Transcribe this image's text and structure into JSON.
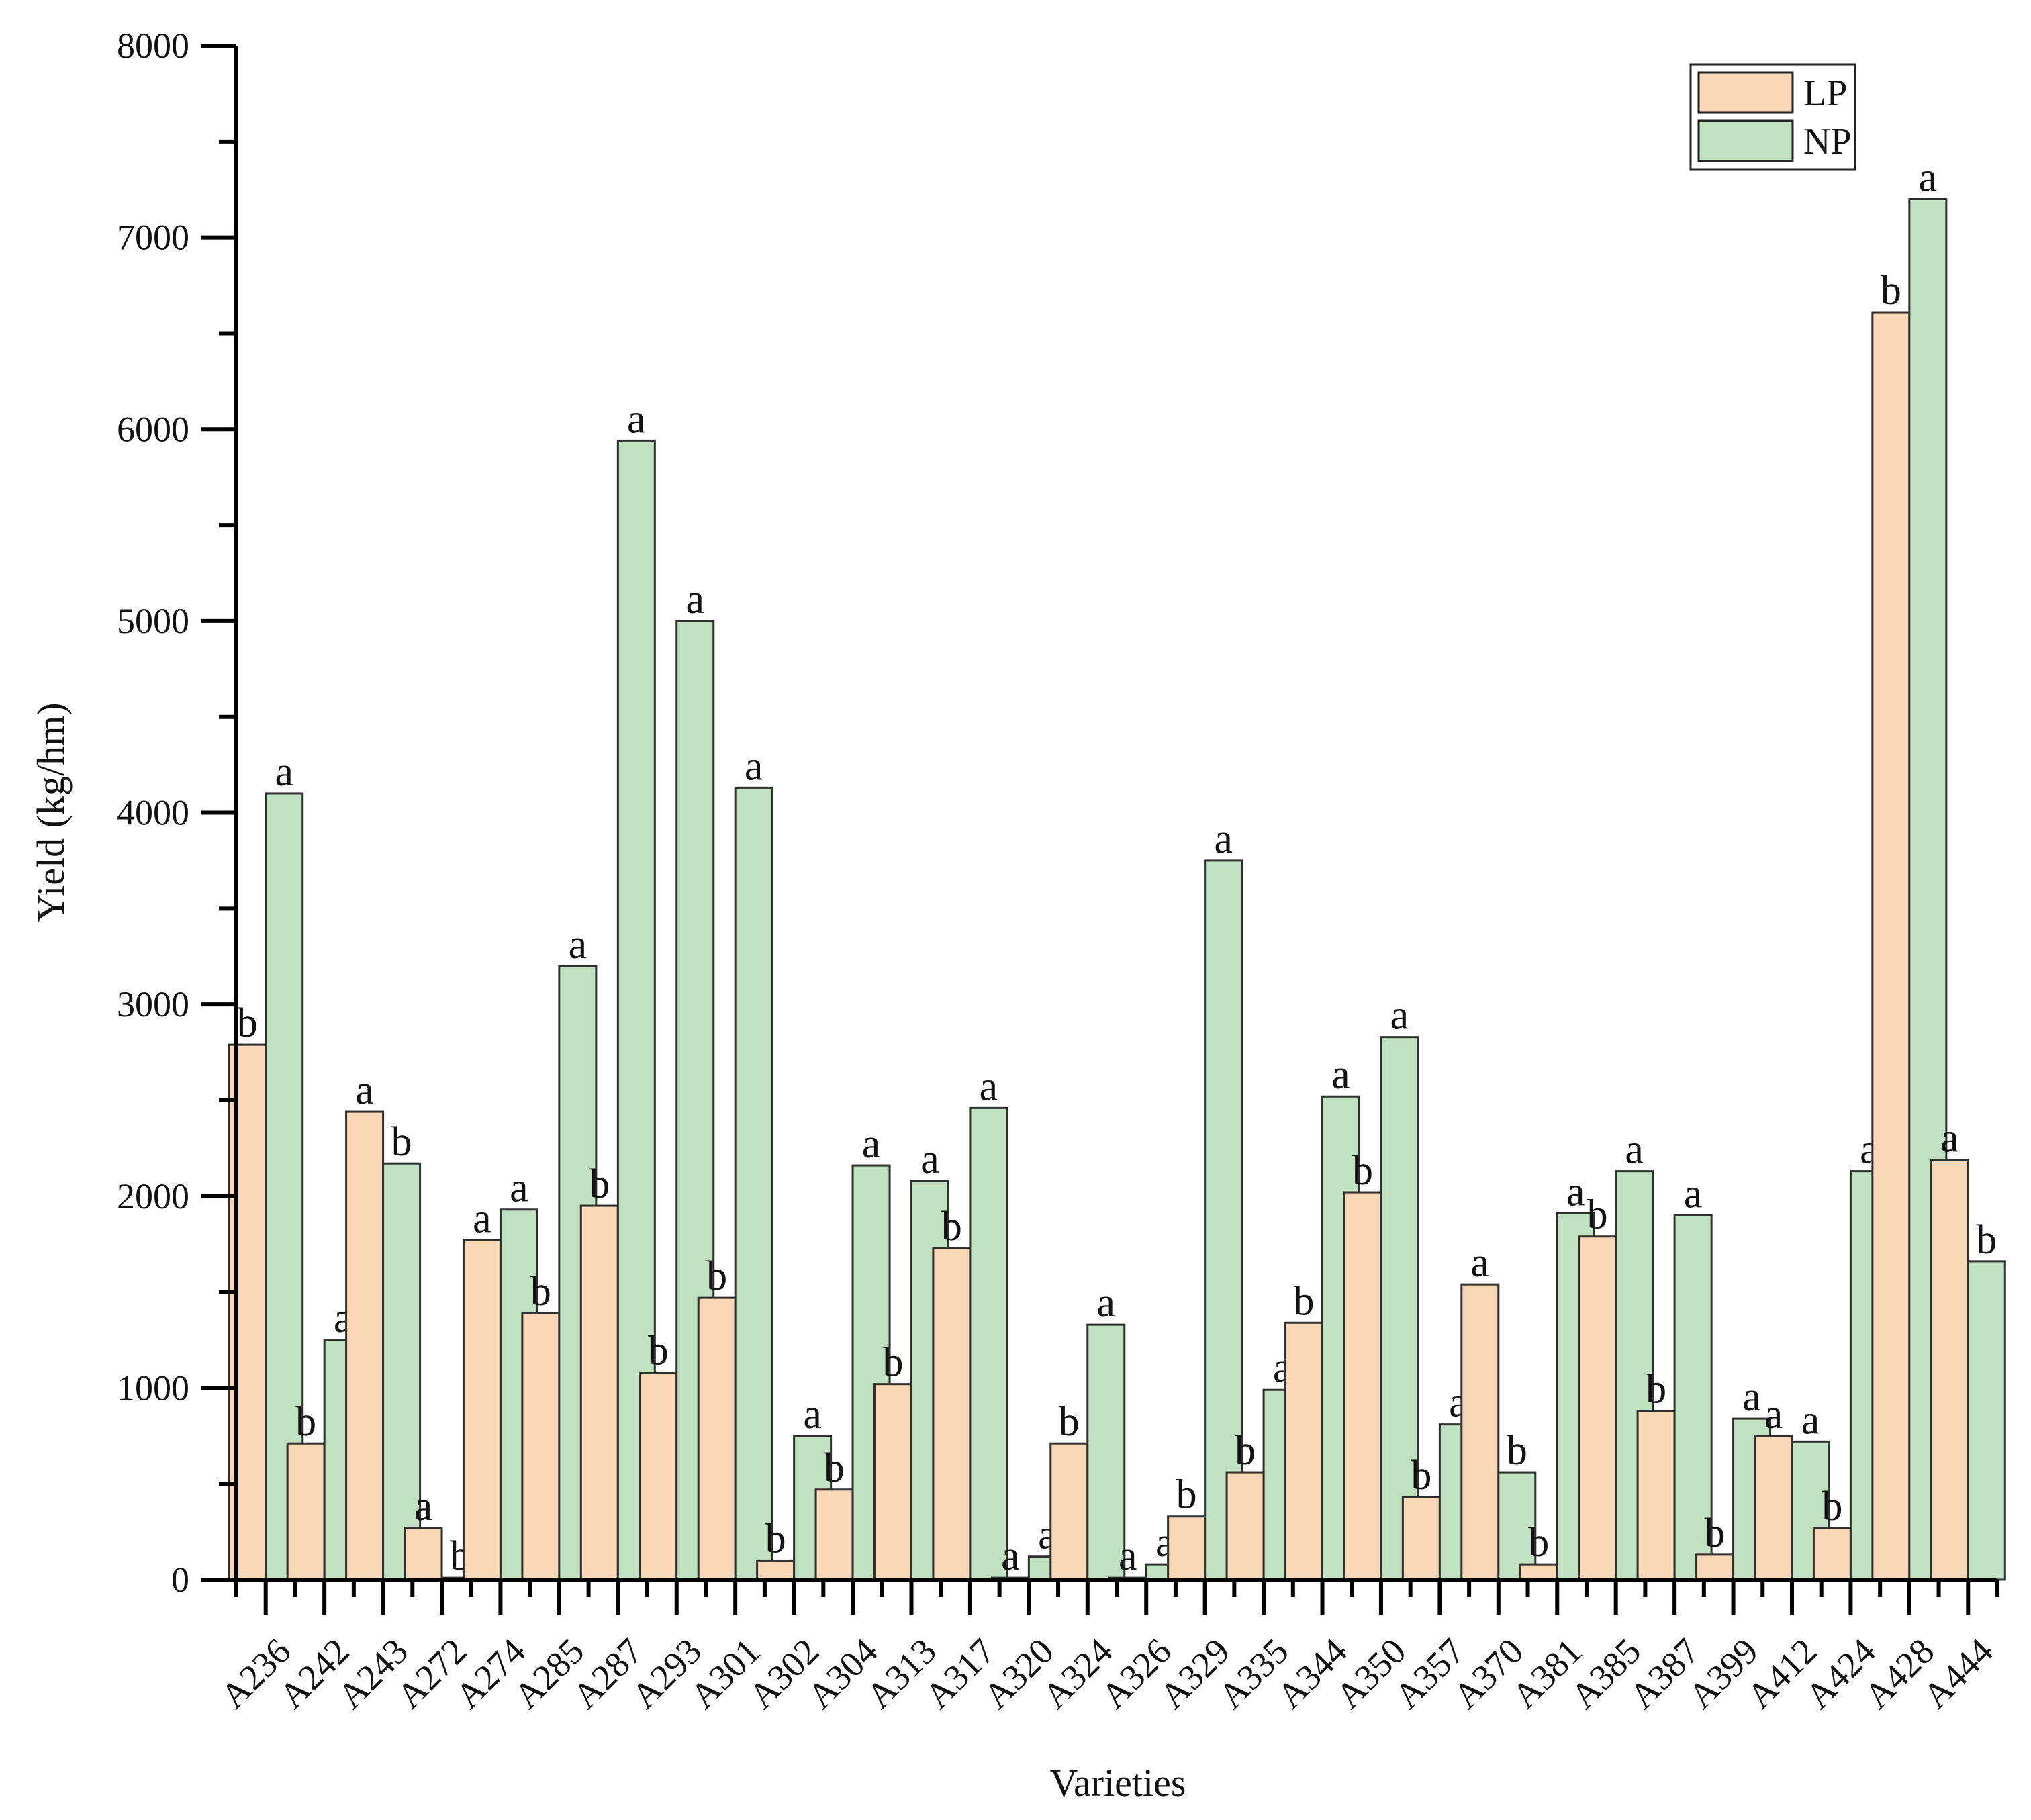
{
  "chart_data": {
    "type": "bar",
    "title": "",
    "xlabel": "Varieties",
    "ylabel": "Yield (kg/hm)",
    "ylim": [
      0,
      8000
    ],
    "yticks": [
      0,
      1000,
      2000,
      3000,
      4000,
      5000,
      6000,
      7000,
      8000
    ],
    "ytick_labels": [
      "0",
      "1000",
      "2000",
      "3000",
      "4000",
      "5000",
      "6000",
      "7000",
      "8000"
    ],
    "legend_position": "top-right",
    "categories": [
      "A236",
      "A242",
      "A243",
      "A272",
      "A274",
      "A285",
      "A287",
      "A293",
      "A301",
      "A302",
      "A304",
      "A313",
      "A317",
      "A320",
      "A324",
      "A326",
      "A329",
      "A335",
      "A344",
      "A350",
      "A357",
      "A370",
      "A381",
      "A385",
      "A387",
      "A399",
      "A412",
      "A424",
      "A428",
      "A444"
    ],
    "series": [
      {
        "name": "LP",
        "color": "#fad7b7",
        "values": [
          2790,
          710,
          2440,
          270,
          1770,
          1390,
          1950,
          1080,
          1470,
          100,
          470,
          1020,
          1730,
          10,
          710,
          10,
          330,
          560,
          1340,
          2020,
          430,
          1540,
          80,
          1790,
          880,
          130,
          750,
          270,
          6610,
          2190
        ],
        "labels": [
          "b",
          "b",
          "a",
          "a",
          "a",
          "b",
          "b",
          "b",
          "b",
          "b",
          "b",
          "b",
          "b",
          "a",
          "b",
          "a",
          "b",
          "b",
          "b",
          "b",
          "b",
          "a",
          "b",
          "b",
          "b",
          "b",
          "a",
          "b",
          "b",
          "a"
        ]
      },
      {
        "name": "NP",
        "color": "#c1e2c1",
        "values": [
          4100,
          1250,
          2170,
          10,
          1930,
          3200,
          5940,
          5000,
          4130,
          750,
          2160,
          2080,
          2460,
          120,
          1330,
          80,
          3750,
          990,
          2520,
          2830,
          810,
          560,
          1910,
          2130,
          1900,
          840,
          720,
          2130,
          7200,
          1660
        ],
        "labels": [
          "a",
          "a",
          "b",
          "b",
          "a",
          "a",
          "a",
          "a",
          "a",
          "a",
          "a",
          "a",
          "a",
          "a",
          "a",
          "a",
          "a",
          "a",
          "a",
          "a",
          "a",
          "b",
          "a",
          "a",
          "a",
          "a",
          "a",
          "a",
          "a",
          "b"
        ]
      }
    ]
  }
}
